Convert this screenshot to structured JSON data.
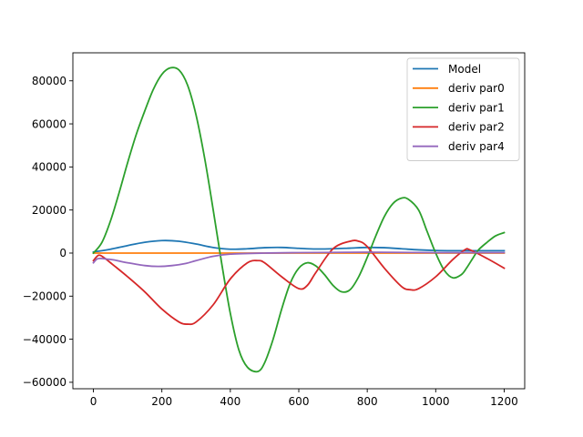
{
  "chart_data": {
    "type": "line",
    "title": "",
    "xlabel": "",
    "ylabel": "",
    "xlim": [
      -60,
      1260
    ],
    "ylim": [
      -63000,
      93000
    ],
    "xticks": [
      0,
      200,
      400,
      600,
      800,
      1000,
      1200
    ],
    "yticks": [
      -60000,
      -40000,
      -20000,
      0,
      20000,
      40000,
      60000,
      80000
    ],
    "xtick_labels": [
      "0",
      "200",
      "400",
      "600",
      "800",
      "1000",
      "1200"
    ],
    "ytick_labels": [
      "−60000",
      "−40000",
      "−20000",
      "0",
      "20000",
      "40000",
      "60000",
      "80000"
    ],
    "grid": false,
    "legend_position": "top-right",
    "series": [
      {
        "name": "Model",
        "color": "#1f77b4",
        "x": [
          0,
          50,
          100,
          150,
          200,
          250,
          300,
          350,
          400,
          450,
          500,
          550,
          600,
          650,
          700,
          750,
          800,
          850,
          900,
          950,
          1000,
          1050,
          1100,
          1150,
          1200
        ],
        "y": [
          500,
          1800,
          3500,
          5000,
          5800,
          5500,
          4200,
          2600,
          1800,
          2000,
          2500,
          2600,
          2200,
          1900,
          2000,
          2300,
          2600,
          2500,
          2000,
          1500,
          1200,
          1100,
          1100,
          1100,
          1100
        ]
      },
      {
        "name": "deriv par0",
        "color": "#ff7f0e",
        "x": [
          0,
          100,
          200,
          300,
          400,
          500,
          600,
          700,
          800,
          900,
          1000,
          1100,
          1200
        ],
        "y": [
          0,
          0,
          0,
          0,
          0,
          0,
          0,
          0,
          0,
          0,
          0,
          0,
          0
        ]
      },
      {
        "name": "deriv par1",
        "color": "#2ca02c",
        "x": [
          0,
          25,
          50,
          75,
          100,
          125,
          150,
          175,
          200,
          225,
          250,
          275,
          300,
          325,
          350,
          375,
          400,
          425,
          450,
          480,
          500,
          525,
          550,
          575,
          600,
          625,
          650,
          675,
          700,
          725,
          750,
          775,
          800,
          825,
          850,
          875,
          900,
          920,
          950,
          975,
          1000,
          1025,
          1050,
          1075,
          1090,
          1110,
          1125,
          1150,
          1175,
          1200
        ],
        "y": [
          0,
          5000,
          15000,
          28000,
          42000,
          55000,
          66000,
          76000,
          83000,
          86000,
          85000,
          78000,
          64000,
          44000,
          20000,
          -5000,
          -28000,
          -45000,
          -53000,
          -55000,
          -51000,
          -40000,
          -26000,
          -14000,
          -7000,
          -4500,
          -6000,
          -10000,
          -15000,
          -18000,
          -17000,
          -11000,
          -2000,
          8000,
          17000,
          23000,
          25500,
          25000,
          20000,
          10000,
          0,
          -8000,
          -11500,
          -10000,
          -7000,
          -2000,
          1500,
          5000,
          8000,
          9500
        ]
      },
      {
        "name": "deriv par2",
        "color": "#d62728",
        "x": [
          0,
          15,
          30,
          50,
          100,
          150,
          200,
          250,
          275,
          300,
          350,
          400,
          450,
          480,
          500,
          550,
          600,
          625,
          650,
          700,
          750,
          775,
          800,
          850,
          900,
          925,
          950,
          1000,
          1050,
          1085,
          1100,
          1150,
          1200
        ],
        "y": [
          -3500,
          -1000,
          -2000,
          -4500,
          -11000,
          -18000,
          -26000,
          -32000,
          -33000,
          -32000,
          -24000,
          -12000,
          -4500,
          -3500,
          -4500,
          -11000,
          -16500,
          -15000,
          -9000,
          2000,
          5500,
          5500,
          3000,
          -7000,
          -15500,
          -17000,
          -16500,
          -11000,
          -3000,
          1500,
          1500,
          -2500,
          -7000
        ]
      },
      {
        "name": "deriv par4",
        "color": "#9467bd",
        "x": [
          0,
          10,
          20,
          40,
          60,
          100,
          150,
          190,
          230,
          270,
          300,
          350,
          400,
          500,
          600,
          700,
          800,
          900,
          1000,
          1100,
          1200
        ],
        "y": [
          -4500,
          -2800,
          -2500,
          -2800,
          -3200,
          -4500,
          -5800,
          -6200,
          -5800,
          -4800,
          -3500,
          -1500,
          -500,
          0,
          200,
          300,
          400,
          300,
          200,
          200,
          200
        ]
      }
    ]
  }
}
